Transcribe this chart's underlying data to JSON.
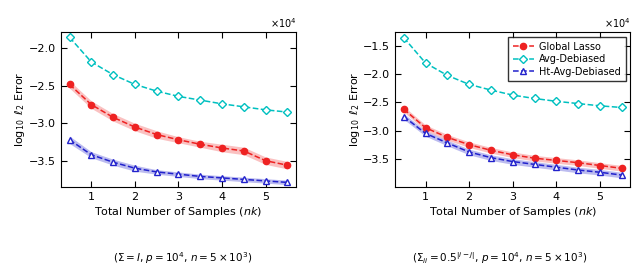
{
  "x_values": [
    5000,
    10000,
    15000,
    20000,
    25000,
    30000,
    35000,
    40000,
    45000,
    50000,
    55000
  ],
  "plot1": {
    "cyan_y": [
      -1.85,
      -2.18,
      -2.35,
      -2.48,
      -2.57,
      -2.64,
      -2.69,
      -2.74,
      -2.78,
      -2.82,
      -2.85
    ],
    "red_y": [
      -2.48,
      -2.75,
      -2.92,
      -3.05,
      -3.15,
      -3.22,
      -3.28,
      -3.33,
      -3.37,
      -3.5,
      -3.56
    ],
    "blue_y": [
      -3.22,
      -3.42,
      -3.52,
      -3.6,
      -3.65,
      -3.68,
      -3.71,
      -3.73,
      -3.75,
      -3.77,
      -3.79
    ],
    "red_fill_upper": [
      -2.43,
      -2.7,
      -2.87,
      -3.0,
      -3.1,
      -3.18,
      -3.24,
      -3.28,
      -3.32,
      -3.45,
      -3.51
    ],
    "red_fill_lower": [
      -2.53,
      -2.8,
      -2.97,
      -3.1,
      -3.2,
      -3.26,
      -3.32,
      -3.38,
      -3.42,
      -3.55,
      -3.61
    ],
    "blue_fill_upper": [
      -3.17,
      -3.38,
      -3.48,
      -3.56,
      -3.62,
      -3.65,
      -3.68,
      -3.7,
      -3.72,
      -3.74,
      -3.76
    ],
    "blue_fill_lower": [
      -3.27,
      -3.46,
      -3.56,
      -3.64,
      -3.68,
      -3.71,
      -3.74,
      -3.76,
      -3.78,
      -3.8,
      -3.82
    ],
    "ylim": [
      -3.85,
      -1.78
    ],
    "yticks": [
      -3.5,
      -3.0,
      -2.5,
      -2.0
    ],
    "subtitle": "($\\Sigma = I$, $p = 10^4$, $n = 5 \\times 10^3$)"
  },
  "plot2": {
    "cyan_y": [
      -1.35,
      -1.8,
      -2.02,
      -2.18,
      -2.28,
      -2.37,
      -2.43,
      -2.48,
      -2.52,
      -2.56,
      -2.59
    ],
    "red_y": [
      -2.62,
      -2.95,
      -3.12,
      -3.25,
      -3.35,
      -3.43,
      -3.49,
      -3.53,
      -3.57,
      -3.62,
      -3.67
    ],
    "blue_y": [
      -2.75,
      -3.05,
      -3.22,
      -3.38,
      -3.48,
      -3.55,
      -3.6,
      -3.65,
      -3.7,
      -3.74,
      -3.79
    ],
    "red_fill_upper": [
      -2.57,
      -2.9,
      -3.07,
      -3.2,
      -3.3,
      -3.38,
      -3.44,
      -3.48,
      -3.52,
      -3.57,
      -3.62
    ],
    "red_fill_lower": [
      -2.67,
      -3.0,
      -3.17,
      -3.3,
      -3.4,
      -3.48,
      -3.54,
      -3.58,
      -3.62,
      -3.67,
      -3.72
    ],
    "blue_fill_upper": [
      -2.7,
      -3.0,
      -3.17,
      -3.33,
      -3.43,
      -3.5,
      -3.55,
      -3.6,
      -3.65,
      -3.69,
      -3.74
    ],
    "blue_fill_lower": [
      -2.8,
      -3.1,
      -3.27,
      -3.43,
      -3.53,
      -3.6,
      -3.65,
      -3.7,
      -3.75,
      -3.79,
      -3.84
    ],
    "ylim": [
      -4.0,
      -1.25
    ],
    "yticks": [
      -3.5,
      -3.0,
      -2.5,
      -2.0,
      -1.5
    ],
    "subtitle": "($\\Sigma_{ii} = 0.5^{|i-j|}$, $p = 10^4$, $n = 5 \\times 10^3$)"
  },
  "cyan_color": "#00C0C0",
  "red_color": "#EE2222",
  "blue_color": "#2222CC",
  "red_fill_alpha": 0.28,
  "blue_fill_alpha": 0.3,
  "xlabel": "Total Number of Samples $(nk)$",
  "ylabel": "$\\log_{10}$ $\\ell_2$ Error",
  "legend_labels": [
    "Global Lasso",
    "Avg-Debiased",
    "Ht-Avg-Debiased"
  ],
  "xticks": [
    10000,
    20000,
    30000,
    40000,
    50000
  ],
  "xticklabels": [
    "1",
    "2",
    "3",
    "4",
    "5"
  ],
  "xlim_left": 3000,
  "xlim_right": 57000
}
